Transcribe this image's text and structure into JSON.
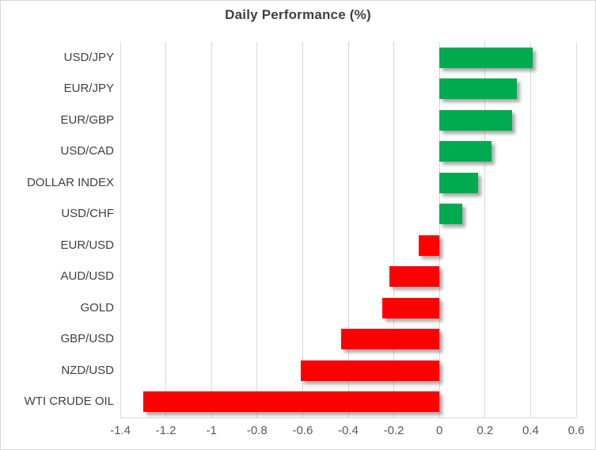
{
  "chart_data": {
    "type": "bar",
    "orientation": "horizontal",
    "title": "Daily Performance (%)",
    "categories": [
      "USD/JPY",
      "EUR/JPY",
      "EUR/GBP",
      "USD/CAD",
      "DOLLAR INDEX",
      "USD/CHF",
      "EUR/USD",
      "AUD/USD",
      "GOLD",
      "GBP/USD",
      "NZD/USD",
      "WTI CRUDE OIL"
    ],
    "values": [
      0.41,
      0.34,
      0.32,
      0.23,
      0.17,
      0.1,
      -0.09,
      -0.22,
      -0.25,
      -0.43,
      -0.61,
      -1.3
    ],
    "xlim": [
      -1.4,
      0.6
    ],
    "x_ticks": [
      -1.4,
      -1.2,
      -1,
      -0.8,
      -0.6,
      -0.4,
      -0.2,
      0,
      0.2,
      0.4,
      0.6
    ],
    "x_tick_labels": [
      "-1.4",
      "-1.2",
      "-1",
      "-0.8",
      "-0.6",
      "-0.4",
      "-0.2",
      "0",
      "0.2",
      "0.4",
      "0.6"
    ],
    "grid": true,
    "legend": "none",
    "colors": {
      "positive": "#00AA50",
      "negative": "#FF0000",
      "gridline": "#D9D9D9",
      "title_text": "#404040",
      "category_text": "#404040",
      "tick_text": "#595959",
      "background": "#FFFFFF"
    }
  }
}
